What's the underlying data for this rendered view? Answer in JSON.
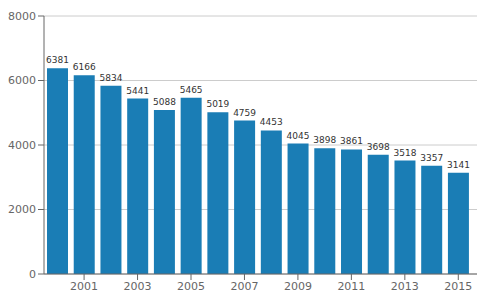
{
  "chart_data": {
    "type": "bar",
    "x": [
      2000,
      2001,
      2002,
      2003,
      2004,
      2005,
      2006,
      2007,
      2008,
      2009,
      2010,
      2011,
      2012,
      2013,
      2014,
      2015
    ],
    "values": [
      6381,
      6166,
      5834,
      5441,
      5088,
      5465,
      5019,
      4759,
      4453,
      4045,
      3898,
      3861,
      3698,
      3518,
      3357,
      3141
    ],
    "color": "#1a7db5",
    "xlim": [
      1999.5,
      2015.7
    ],
    "xticks": [
      2001,
      2003,
      2005,
      2007,
      2009,
      2011,
      2013,
      2015
    ],
    "ylim": [
      0,
      8000
    ],
    "yticks": [
      0,
      2000,
      4000,
      6000,
      8000
    ],
    "grid": true,
    "data_labels": true
  }
}
